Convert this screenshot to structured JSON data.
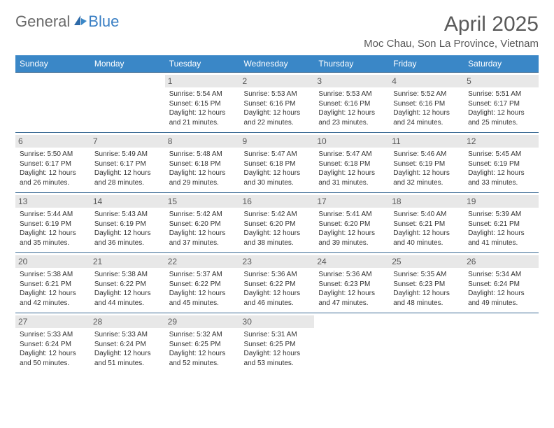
{
  "logo": {
    "text_general": "General",
    "text_blue": "Blue"
  },
  "title": "April 2025",
  "location": "Moc Chau, Son La Province, Vietnam",
  "colors": {
    "header_bg": "#3a87c7",
    "header_text": "#ffffff",
    "daynum_bg": "#e8e8e8",
    "row_border": "#3a6a94",
    "title_color": "#595959",
    "logo_gray": "#6a6a6a",
    "logo_blue": "#3a7fc4"
  },
  "day_headers": [
    "Sunday",
    "Monday",
    "Tuesday",
    "Wednesday",
    "Thursday",
    "Friday",
    "Saturday"
  ],
  "weeks": [
    [
      {
        "day": "",
        "sun_rise": "",
        "sun_set": "",
        "daylight": ""
      },
      {
        "day": "",
        "sun_rise": "",
        "sun_set": "",
        "daylight": ""
      },
      {
        "day": "1",
        "sun_rise": "Sunrise: 5:54 AM",
        "sun_set": "Sunset: 6:15 PM",
        "daylight": "Daylight: 12 hours and 21 minutes."
      },
      {
        "day": "2",
        "sun_rise": "Sunrise: 5:53 AM",
        "sun_set": "Sunset: 6:16 PM",
        "daylight": "Daylight: 12 hours and 22 minutes."
      },
      {
        "day": "3",
        "sun_rise": "Sunrise: 5:53 AM",
        "sun_set": "Sunset: 6:16 PM",
        "daylight": "Daylight: 12 hours and 23 minutes."
      },
      {
        "day": "4",
        "sun_rise": "Sunrise: 5:52 AM",
        "sun_set": "Sunset: 6:16 PM",
        "daylight": "Daylight: 12 hours and 24 minutes."
      },
      {
        "day": "5",
        "sun_rise": "Sunrise: 5:51 AM",
        "sun_set": "Sunset: 6:17 PM",
        "daylight": "Daylight: 12 hours and 25 minutes."
      }
    ],
    [
      {
        "day": "6",
        "sun_rise": "Sunrise: 5:50 AM",
        "sun_set": "Sunset: 6:17 PM",
        "daylight": "Daylight: 12 hours and 26 minutes."
      },
      {
        "day": "7",
        "sun_rise": "Sunrise: 5:49 AM",
        "sun_set": "Sunset: 6:17 PM",
        "daylight": "Daylight: 12 hours and 28 minutes."
      },
      {
        "day": "8",
        "sun_rise": "Sunrise: 5:48 AM",
        "sun_set": "Sunset: 6:18 PM",
        "daylight": "Daylight: 12 hours and 29 minutes."
      },
      {
        "day": "9",
        "sun_rise": "Sunrise: 5:47 AM",
        "sun_set": "Sunset: 6:18 PM",
        "daylight": "Daylight: 12 hours and 30 minutes."
      },
      {
        "day": "10",
        "sun_rise": "Sunrise: 5:47 AM",
        "sun_set": "Sunset: 6:18 PM",
        "daylight": "Daylight: 12 hours and 31 minutes."
      },
      {
        "day": "11",
        "sun_rise": "Sunrise: 5:46 AM",
        "sun_set": "Sunset: 6:19 PM",
        "daylight": "Daylight: 12 hours and 32 minutes."
      },
      {
        "day": "12",
        "sun_rise": "Sunrise: 5:45 AM",
        "sun_set": "Sunset: 6:19 PM",
        "daylight": "Daylight: 12 hours and 33 minutes."
      }
    ],
    [
      {
        "day": "13",
        "sun_rise": "Sunrise: 5:44 AM",
        "sun_set": "Sunset: 6:19 PM",
        "daylight": "Daylight: 12 hours and 35 minutes."
      },
      {
        "day": "14",
        "sun_rise": "Sunrise: 5:43 AM",
        "sun_set": "Sunset: 6:19 PM",
        "daylight": "Daylight: 12 hours and 36 minutes."
      },
      {
        "day": "15",
        "sun_rise": "Sunrise: 5:42 AM",
        "sun_set": "Sunset: 6:20 PM",
        "daylight": "Daylight: 12 hours and 37 minutes."
      },
      {
        "day": "16",
        "sun_rise": "Sunrise: 5:42 AM",
        "sun_set": "Sunset: 6:20 PM",
        "daylight": "Daylight: 12 hours and 38 minutes."
      },
      {
        "day": "17",
        "sun_rise": "Sunrise: 5:41 AM",
        "sun_set": "Sunset: 6:20 PM",
        "daylight": "Daylight: 12 hours and 39 minutes."
      },
      {
        "day": "18",
        "sun_rise": "Sunrise: 5:40 AM",
        "sun_set": "Sunset: 6:21 PM",
        "daylight": "Daylight: 12 hours and 40 minutes."
      },
      {
        "day": "19",
        "sun_rise": "Sunrise: 5:39 AM",
        "sun_set": "Sunset: 6:21 PM",
        "daylight": "Daylight: 12 hours and 41 minutes."
      }
    ],
    [
      {
        "day": "20",
        "sun_rise": "Sunrise: 5:38 AM",
        "sun_set": "Sunset: 6:21 PM",
        "daylight": "Daylight: 12 hours and 42 minutes."
      },
      {
        "day": "21",
        "sun_rise": "Sunrise: 5:38 AM",
        "sun_set": "Sunset: 6:22 PM",
        "daylight": "Daylight: 12 hours and 44 minutes."
      },
      {
        "day": "22",
        "sun_rise": "Sunrise: 5:37 AM",
        "sun_set": "Sunset: 6:22 PM",
        "daylight": "Daylight: 12 hours and 45 minutes."
      },
      {
        "day": "23",
        "sun_rise": "Sunrise: 5:36 AM",
        "sun_set": "Sunset: 6:22 PM",
        "daylight": "Daylight: 12 hours and 46 minutes."
      },
      {
        "day": "24",
        "sun_rise": "Sunrise: 5:36 AM",
        "sun_set": "Sunset: 6:23 PM",
        "daylight": "Daylight: 12 hours and 47 minutes."
      },
      {
        "day": "25",
        "sun_rise": "Sunrise: 5:35 AM",
        "sun_set": "Sunset: 6:23 PM",
        "daylight": "Daylight: 12 hours and 48 minutes."
      },
      {
        "day": "26",
        "sun_rise": "Sunrise: 5:34 AM",
        "sun_set": "Sunset: 6:24 PM",
        "daylight": "Daylight: 12 hours and 49 minutes."
      }
    ],
    [
      {
        "day": "27",
        "sun_rise": "Sunrise: 5:33 AM",
        "sun_set": "Sunset: 6:24 PM",
        "daylight": "Daylight: 12 hours and 50 minutes."
      },
      {
        "day": "28",
        "sun_rise": "Sunrise: 5:33 AM",
        "sun_set": "Sunset: 6:24 PM",
        "daylight": "Daylight: 12 hours and 51 minutes."
      },
      {
        "day": "29",
        "sun_rise": "Sunrise: 5:32 AM",
        "sun_set": "Sunset: 6:25 PM",
        "daylight": "Daylight: 12 hours and 52 minutes."
      },
      {
        "day": "30",
        "sun_rise": "Sunrise: 5:31 AM",
        "sun_set": "Sunset: 6:25 PM",
        "daylight": "Daylight: 12 hours and 53 minutes."
      },
      {
        "day": "",
        "sun_rise": "",
        "sun_set": "",
        "daylight": ""
      },
      {
        "day": "",
        "sun_rise": "",
        "sun_set": "",
        "daylight": ""
      },
      {
        "day": "",
        "sun_rise": "",
        "sun_set": "",
        "daylight": ""
      }
    ]
  ]
}
